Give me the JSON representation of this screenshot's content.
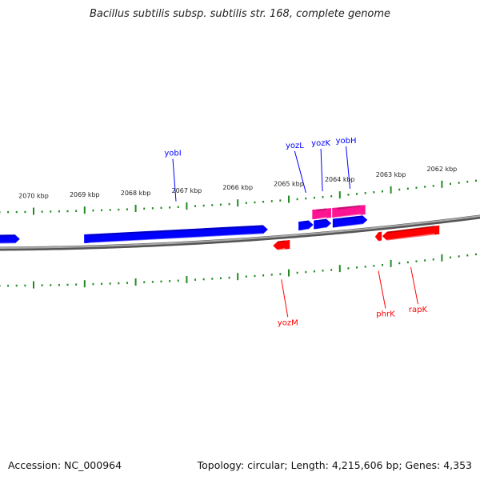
{
  "title": "Bacillus subtilis subsp. subtilis str. 168, complete genome",
  "footer": {
    "accession": "Accession: NC_000964",
    "summary": "Topology: circular; Length: 4,215,606 bp; Genes: 4,353"
  },
  "colors": {
    "forward": "#0000ff",
    "reverse": "#ff0000",
    "rna": "#ff1493",
    "ticks": "#228b22",
    "backbone": "#808080"
  },
  "ticks": {
    "unit": "kbp",
    "labels": [
      "2070 kbp",
      "2069 kbp",
      "2068 kbp",
      "2067 kbp",
      "2066 kbp",
      "2065 kbp",
      "2064 kbp",
      "2063 kbp",
      "2062 kbp"
    ],
    "values": [
      2070,
      2069,
      2068,
      2067,
      2066,
      2065,
      2064,
      2063,
      2062
    ]
  },
  "genes": [
    {
      "name": "",
      "strand": "+",
      "start_kbp": 2070.85,
      "end_kbp": 2070.27,
      "type": "cds"
    },
    {
      "name": "yobI",
      "strand": "+",
      "start_kbp": 2069.01,
      "end_kbp": 2065.41,
      "type": "cds"
    },
    {
      "name": "yozL",
      "strand": "+",
      "start_kbp": 2064.81,
      "end_kbp": 2064.52,
      "type": "cds"
    },
    {
      "name": "yozK",
      "strand": "+",
      "start_kbp": 2064.51,
      "end_kbp": 2064.17,
      "type": "cds"
    },
    {
      "name": "yobH",
      "strand": "+",
      "start_kbp": 2064.14,
      "end_kbp": 2063.46,
      "type": "cds"
    },
    {
      "name": "",
      "strand": "+",
      "start_kbp": 2064.54,
      "end_kbp": 2064.17,
      "type": "rna"
    },
    {
      "name": "",
      "strand": "+",
      "start_kbp": 2064.15,
      "end_kbp": 2063.5,
      "type": "rna"
    },
    {
      "name": "yozM",
      "strand": "-",
      "start_kbp": 2065.31,
      "end_kbp": 2064.98,
      "type": "cds"
    },
    {
      "name": "phrK",
      "strand": "-",
      "start_kbp": 2063.31,
      "end_kbp": 2063.18,
      "type": "cds"
    },
    {
      "name": "rapK",
      "strand": "-",
      "start_kbp": 2063.17,
      "end_kbp": 2062.05,
      "type": "cds"
    }
  ]
}
